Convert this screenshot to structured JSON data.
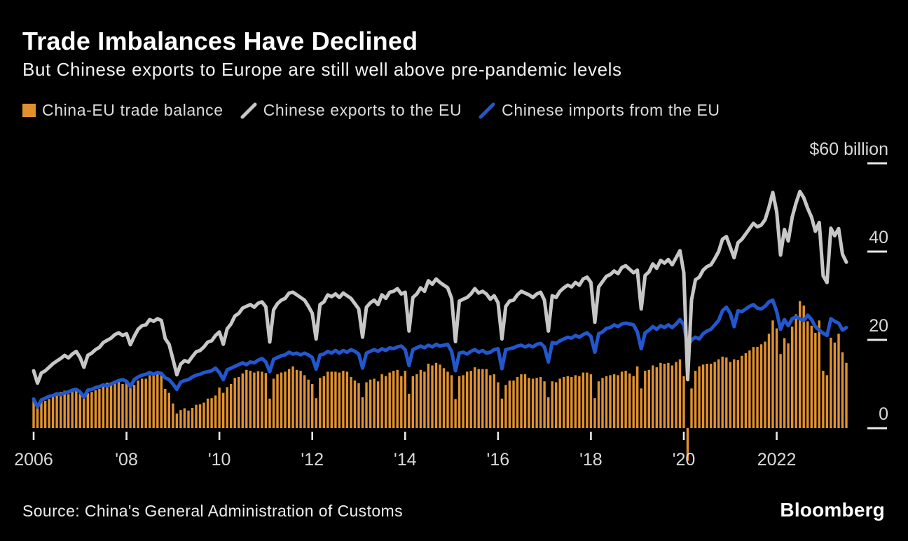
{
  "header": {
    "title": "Trade Imbalances Have Declined",
    "subtitle": "But Chinese exports to Europe are still well above pre-pandemic levels"
  },
  "legend": [
    {
      "label": "China-EU trade balance",
      "marker": "square",
      "color": "#e0912e"
    },
    {
      "label": "Chinese exports to the EU",
      "marker": "diagonal-line",
      "color": "#c7c7c7"
    },
    {
      "label": "Chinese imports from the EU",
      "marker": "diagonal-line",
      "color": "#2257ce"
    }
  ],
  "axis": {
    "y_ticks": [
      {
        "label": "$60 billion",
        "value": 60
      },
      {
        "label": "40",
        "value": 40
      },
      {
        "label": "20",
        "value": 20
      },
      {
        "label": "0",
        "value": 0
      }
    ],
    "x_ticks": [
      {
        "label": "2006",
        "month_index": 0
      },
      {
        "label": "'08",
        "month_index": 24
      },
      {
        "label": "'10",
        "month_index": 48
      },
      {
        "label": "'12",
        "month_index": 72
      },
      {
        "label": "'14",
        "month_index": 96
      },
      {
        "label": "'16",
        "month_index": 120
      },
      {
        "label": "'18",
        "month_index": 144
      },
      {
        "label": "'20",
        "month_index": 168
      },
      {
        "label": "2022",
        "month_index": 192
      }
    ]
  },
  "footer": {
    "source": "Source: China's General Administration of Customs",
    "brand": "Bloomberg"
  },
  "colors": {
    "background": "#000000",
    "title": "#ffffff",
    "axis_label": "#d9d9d9",
    "tick": "#e8e8e8",
    "balance_bar": "#e0912e",
    "exports_line": "#c7c7c7",
    "imports_line": "#2257ce"
  },
  "chart_data": {
    "type": "combo",
    "title": "Trade Imbalances Have Declined",
    "subtitle": "But Chinese exports to Europe are still well above pre-pandemic levels",
    "unit": "USD billion, monthly",
    "x_domain": [
      "2006-01",
      "2023-07"
    ],
    "frequency": "monthly",
    "ylim": [
      -8,
      62
    ],
    "grid": false,
    "legend_position": "top",
    "series": [
      {
        "name": "China-EU trade balance",
        "type": "bar",
        "color": "#e0912e",
        "values": [
          6.4,
          5.4,
          6.1,
          6.2,
          6.6,
          7.2,
          7.4,
          8.2,
          8.5,
          7.7,
          8.2,
          8.6,
          7.8,
          6.8,
          7.9,
          8.2,
          8.6,
          8.9,
          9.6,
          10.3,
          10.4,
          10.8,
          10.8,
          10.0,
          10.8,
          9.5,
          9.8,
          10.8,
          11.2,
          11.2,
          12.0,
          12.0,
          12.2,
          12.0,
          8.9,
          8.0,
          5.6,
          3.3,
          4.1,
          4.5,
          4.0,
          4.6,
          5.3,
          5.4,
          5.8,
          6.7,
          6.8,
          7.4,
          9.2,
          8.0,
          9.3,
          10.0,
          11.4,
          11.6,
          12.4,
          13.2,
          13.0,
          12.6,
          12.9,
          12.8,
          12.5,
          6.7,
          11.2,
          12.2,
          12.6,
          12.8,
          13.4,
          14.0,
          13.2,
          13.0,
          12.0,
          11.0,
          10.0,
          6.8,
          11.4,
          11.8,
          12.8,
          12.8,
          12.8,
          12.6,
          13.0,
          12.8,
          11.6,
          10.8,
          10.2,
          7.0,
          10.4,
          11.0,
          11.2,
          10.6,
          12.2,
          11.8,
          12.6,
          13.0,
          13.2,
          11.8,
          13.0,
          7.8,
          11.8,
          12.2,
          13.2,
          12.8,
          14.6,
          14.2,
          14.8,
          14.4,
          13.6,
          12.8,
          12.0,
          6.6,
          11.8,
          12.0,
          12.8,
          13.0,
          13.8,
          13.4,
          13.4,
          13.4,
          12.0,
          12.2,
          10.4,
          6.7,
          9.8,
          10.8,
          10.8,
          11.6,
          12.2,
          12.2,
          11.4,
          11.2,
          11.4,
          11.6,
          10.6,
          7.0,
          10.6,
          10.4,
          11.2,
          11.6,
          11.8,
          11.6,
          12.0,
          11.8,
          12.6,
          12.6,
          12.2,
          6.8,
          10.6,
          11.4,
          11.8,
          12.0,
          12.2,
          12.0,
          12.8,
          13.0,
          12.4,
          11.8,
          14.0,
          9.0,
          13.0,
          13.2,
          14.2,
          13.8,
          14.8,
          14.6,
          14.8,
          14.2,
          15.0,
          15.6,
          11.8,
          -7.4,
          9.0,
          13.0,
          14.0,
          14.4,
          14.6,
          14.6,
          15.0,
          15.6,
          16.2,
          16.0,
          15.0,
          15.6,
          15.4,
          16.4,
          17.0,
          17.6,
          18.4,
          18.4,
          19.0,
          19.6,
          21.4,
          24.4,
          22.6,
          16.8,
          20.4,
          19.2,
          23.0,
          25.8,
          28.8,
          27.8,
          24.2,
          23.2,
          21.6,
          24.4,
          13.0,
          12.0,
          20.5,
          19.4,
          21.4,
          17.2,
          14.8
        ]
      },
      {
        "name": "Chinese exports to the EU",
        "type": "line",
        "color": "#c7c7c7",
        "values": [
          13.0,
          10.2,
          12.5,
          13.0,
          13.8,
          14.6,
          15.2,
          15.8,
          16.5,
          15.9,
          16.8,
          17.4,
          16.0,
          13.8,
          16.5,
          17.0,
          17.8,
          18.3,
          19.4,
          19.9,
          20.4,
          21.2,
          21.6,
          21.0,
          21.4,
          18.9,
          20.8,
          22.4,
          23.2,
          23.4,
          24.6,
          24.2,
          24.8,
          24.4,
          20.3,
          19.0,
          15.6,
          12.1,
          14.5,
          15.3,
          15.0,
          16.2,
          17.3,
          17.6,
          18.4,
          19.5,
          19.8,
          21.0,
          21.8,
          19.0,
          22.5,
          23.6,
          25.4,
          26.0,
          27.2,
          27.6,
          28.0,
          27.4,
          28.3,
          28.6,
          27.5,
          19.5,
          26.8,
          28.2,
          29.0,
          29.4,
          30.6,
          30.8,
          30.2,
          29.6,
          29.0,
          27.6,
          26.0,
          20.2,
          28.0,
          28.6,
          30.2,
          29.8,
          30.4,
          29.6,
          30.6,
          30.0,
          29.4,
          28.2,
          27.0,
          20.6,
          27.4,
          28.4,
          29.0,
          28.0,
          30.2,
          29.4,
          30.8,
          31.0,
          31.6,
          30.4,
          30.8,
          22.0,
          29.6,
          30.4,
          31.8,
          31.0,
          33.4,
          32.6,
          33.8,
          33.0,
          32.4,
          31.8,
          29.4,
          19.6,
          28.8,
          29.2,
          29.6,
          30.4,
          31.6,
          30.6,
          31.0,
          30.4,
          29.2,
          30.0,
          28.4,
          20.2,
          27.6,
          28.8,
          29.0,
          30.2,
          31.0,
          30.6,
          30.2,
          29.6,
          30.4,
          30.8,
          29.0,
          22.0,
          30.0,
          29.6,
          31.0,
          31.8,
          32.4,
          32.0,
          33.0,
          32.4,
          33.8,
          34.2,
          33.0,
          24.0,
          32.0,
          33.2,
          34.4,
          34.8,
          35.6,
          35.0,
          36.4,
          36.8,
          36.0,
          35.2,
          35.8,
          27.0,
          34.6,
          35.4,
          37.2,
          36.2,
          38.0,
          37.4,
          38.2,
          37.0,
          38.6,
          40.2,
          35.2,
          11.0,
          29.0,
          33.6,
          34.2,
          35.8,
          36.6,
          37.0,
          38.4,
          40.0,
          42.8,
          43.4,
          41.0,
          38.6,
          42.0,
          42.8,
          44.0,
          45.2,
          46.4,
          45.6,
          46.0,
          47.2,
          50.0,
          53.4,
          49.0,
          39.2,
          45.0,
          42.4,
          47.8,
          51.0,
          53.6,
          52.2,
          49.8,
          47.8,
          44.6,
          46.6,
          34.5,
          33.0,
          45.3,
          43.6,
          45.2,
          39.4,
          37.6
        ]
      },
      {
        "name": "Chinese imports from the EU",
        "type": "line",
        "color": "#2257ce",
        "values": [
          6.6,
          4.8,
          6.4,
          6.8,
          7.2,
          7.4,
          7.8,
          7.6,
          8.0,
          8.2,
          8.6,
          8.8,
          8.2,
          7.0,
          8.6,
          8.8,
          9.2,
          9.4,
          9.8,
          9.6,
          10.0,
          10.4,
          10.8,
          11.0,
          10.6,
          9.4,
          11.0,
          11.6,
          12.0,
          12.2,
          12.6,
          12.2,
          12.6,
          12.4,
          11.4,
          11.0,
          10.0,
          8.8,
          10.4,
          10.8,
          11.0,
          11.6,
          12.0,
          12.2,
          12.6,
          12.8,
          13.0,
          13.6,
          12.6,
          11.0,
          13.2,
          13.6,
          14.0,
          14.4,
          14.8,
          14.4,
          15.0,
          14.8,
          15.4,
          15.8,
          15.0,
          12.8,
          15.6,
          16.0,
          16.4,
          16.6,
          17.2,
          16.8,
          17.0,
          16.6,
          17.0,
          16.6,
          16.0,
          13.4,
          16.6,
          16.8,
          17.4,
          17.0,
          17.6,
          17.0,
          17.6,
          17.2,
          17.8,
          17.4,
          16.8,
          13.6,
          17.0,
          17.4,
          17.8,
          17.4,
          18.0,
          17.6,
          18.2,
          18.0,
          18.4,
          18.6,
          17.8,
          14.2,
          17.8,
          18.2,
          18.6,
          18.2,
          18.8,
          18.4,
          19.0,
          18.6,
          18.8,
          19.0,
          17.4,
          13.0,
          17.0,
          17.2,
          16.8,
          17.4,
          17.8,
          17.2,
          17.6,
          17.0,
          17.2,
          17.8,
          18.0,
          13.5,
          17.8,
          18.0,
          18.2,
          18.6,
          18.8,
          18.4,
          18.8,
          18.4,
          19.0,
          19.2,
          18.4,
          15.0,
          19.4,
          19.2,
          19.8,
          20.2,
          20.6,
          20.4,
          21.0,
          20.6,
          21.2,
          21.6,
          20.8,
          17.2,
          21.4,
          21.8,
          22.6,
          22.8,
          23.4,
          23.0,
          23.6,
          23.8,
          23.6,
          23.4,
          21.8,
          18.0,
          21.6,
          22.2,
          23.0,
          22.4,
          23.2,
          22.8,
          23.4,
          22.8,
          23.6,
          24.6,
          23.4,
          18.4,
          20.0,
          20.6,
          20.2,
          21.4,
          22.0,
          22.4,
          23.4,
          24.4,
          26.6,
          27.4,
          26.0,
          23.0,
          26.6,
          26.4,
          27.0,
          27.6,
          28.0,
          27.2,
          27.0,
          27.6,
          28.6,
          29.0,
          26.4,
          22.4,
          24.6,
          23.2,
          24.8,
          25.2,
          24.8,
          24.4,
          25.6,
          24.6,
          23.0,
          22.2,
          21.5,
          21.0,
          24.8,
          24.2,
          23.8,
          22.2,
          22.8
        ]
      }
    ]
  }
}
